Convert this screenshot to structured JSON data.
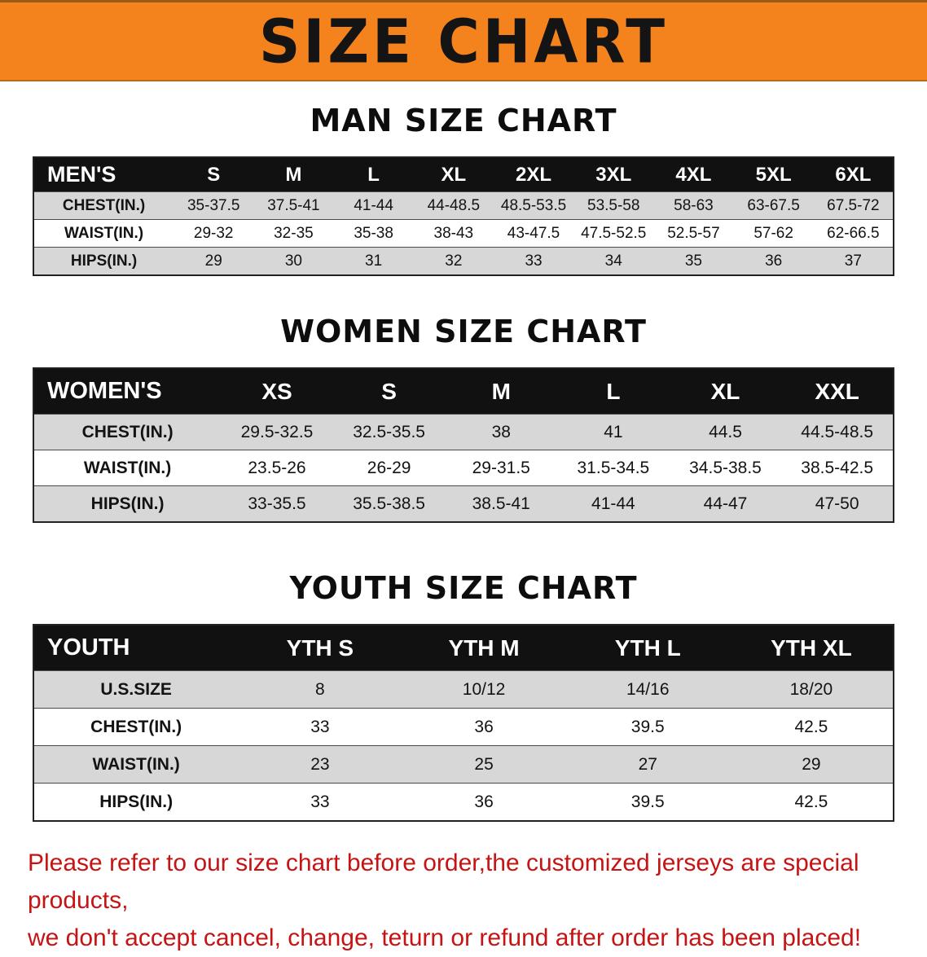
{
  "banner": {
    "title": "SIZE CHART"
  },
  "colors": {
    "banner_bg": "#f5831d",
    "header_bg": "#111111",
    "stripe": "#d7d7d7",
    "footer_text": "#c61414"
  },
  "sections": [
    {
      "id": "men",
      "heading": "MAN SIZE CHART",
      "table": {
        "header": [
          "MEN'S",
          "S",
          "M",
          "L",
          "XL",
          "2XL",
          "3XL",
          "4XL",
          "5XL",
          "6XL"
        ],
        "rows": [
          [
            "CHEST(IN.)",
            "35-37.5",
            "37.5-41",
            "41-44",
            "44-48.5",
            "48.5-53.5",
            "53.5-58",
            "58-63",
            "63-67.5",
            "67.5-72"
          ],
          [
            "WAIST(IN.)",
            "29-32",
            "32-35",
            "35-38",
            "38-43",
            "43-47.5",
            "47.5-52.5",
            "52.5-57",
            "57-62",
            "62-66.5"
          ],
          [
            "HIPS(IN.)",
            "29",
            "30",
            "31",
            "32",
            "33",
            "34",
            "35",
            "36",
            "37"
          ]
        ]
      }
    },
    {
      "id": "women",
      "heading": "WOMEN SIZE CHART",
      "table": {
        "header": [
          "WOMEN'S",
          "XS",
          "S",
          "M",
          "L",
          "XL",
          "XXL"
        ],
        "rows": [
          [
            "CHEST(IN.)",
            "29.5-32.5",
            "32.5-35.5",
            "38",
            "41",
            "44.5",
            "44.5-48.5"
          ],
          [
            "WAIST(IN.)",
            "23.5-26",
            "26-29",
            "29-31.5",
            "31.5-34.5",
            "34.5-38.5",
            "38.5-42.5"
          ],
          [
            "HIPS(IN.)",
            "33-35.5",
            "35.5-38.5",
            "38.5-41",
            "41-44",
            "44-47",
            "47-50"
          ]
        ]
      }
    },
    {
      "id": "youth",
      "heading": "YOUTH SIZE CHART",
      "table": {
        "header": [
          "YOUTH",
          "YTH S",
          "YTH M",
          "YTH L",
          "YTH XL"
        ],
        "rows": [
          [
            "U.S.SIZE",
            "8",
            "10/12",
            "14/16",
            "18/20"
          ],
          [
            "CHEST(IN.)",
            "33",
            "36",
            "39.5",
            "42.5"
          ],
          [
            "WAIST(IN.)",
            "23",
            "25",
            "27",
            "29"
          ],
          [
            "HIPS(IN.)",
            "33",
            "36",
            "39.5",
            "42.5"
          ]
        ]
      }
    }
  ],
  "footer": {
    "line1": "Please refer to our size chart before order,the customized jerseys are special products,",
    "line2": "we don't accept cancel, change, teturn or refund after order has been placed!"
  }
}
